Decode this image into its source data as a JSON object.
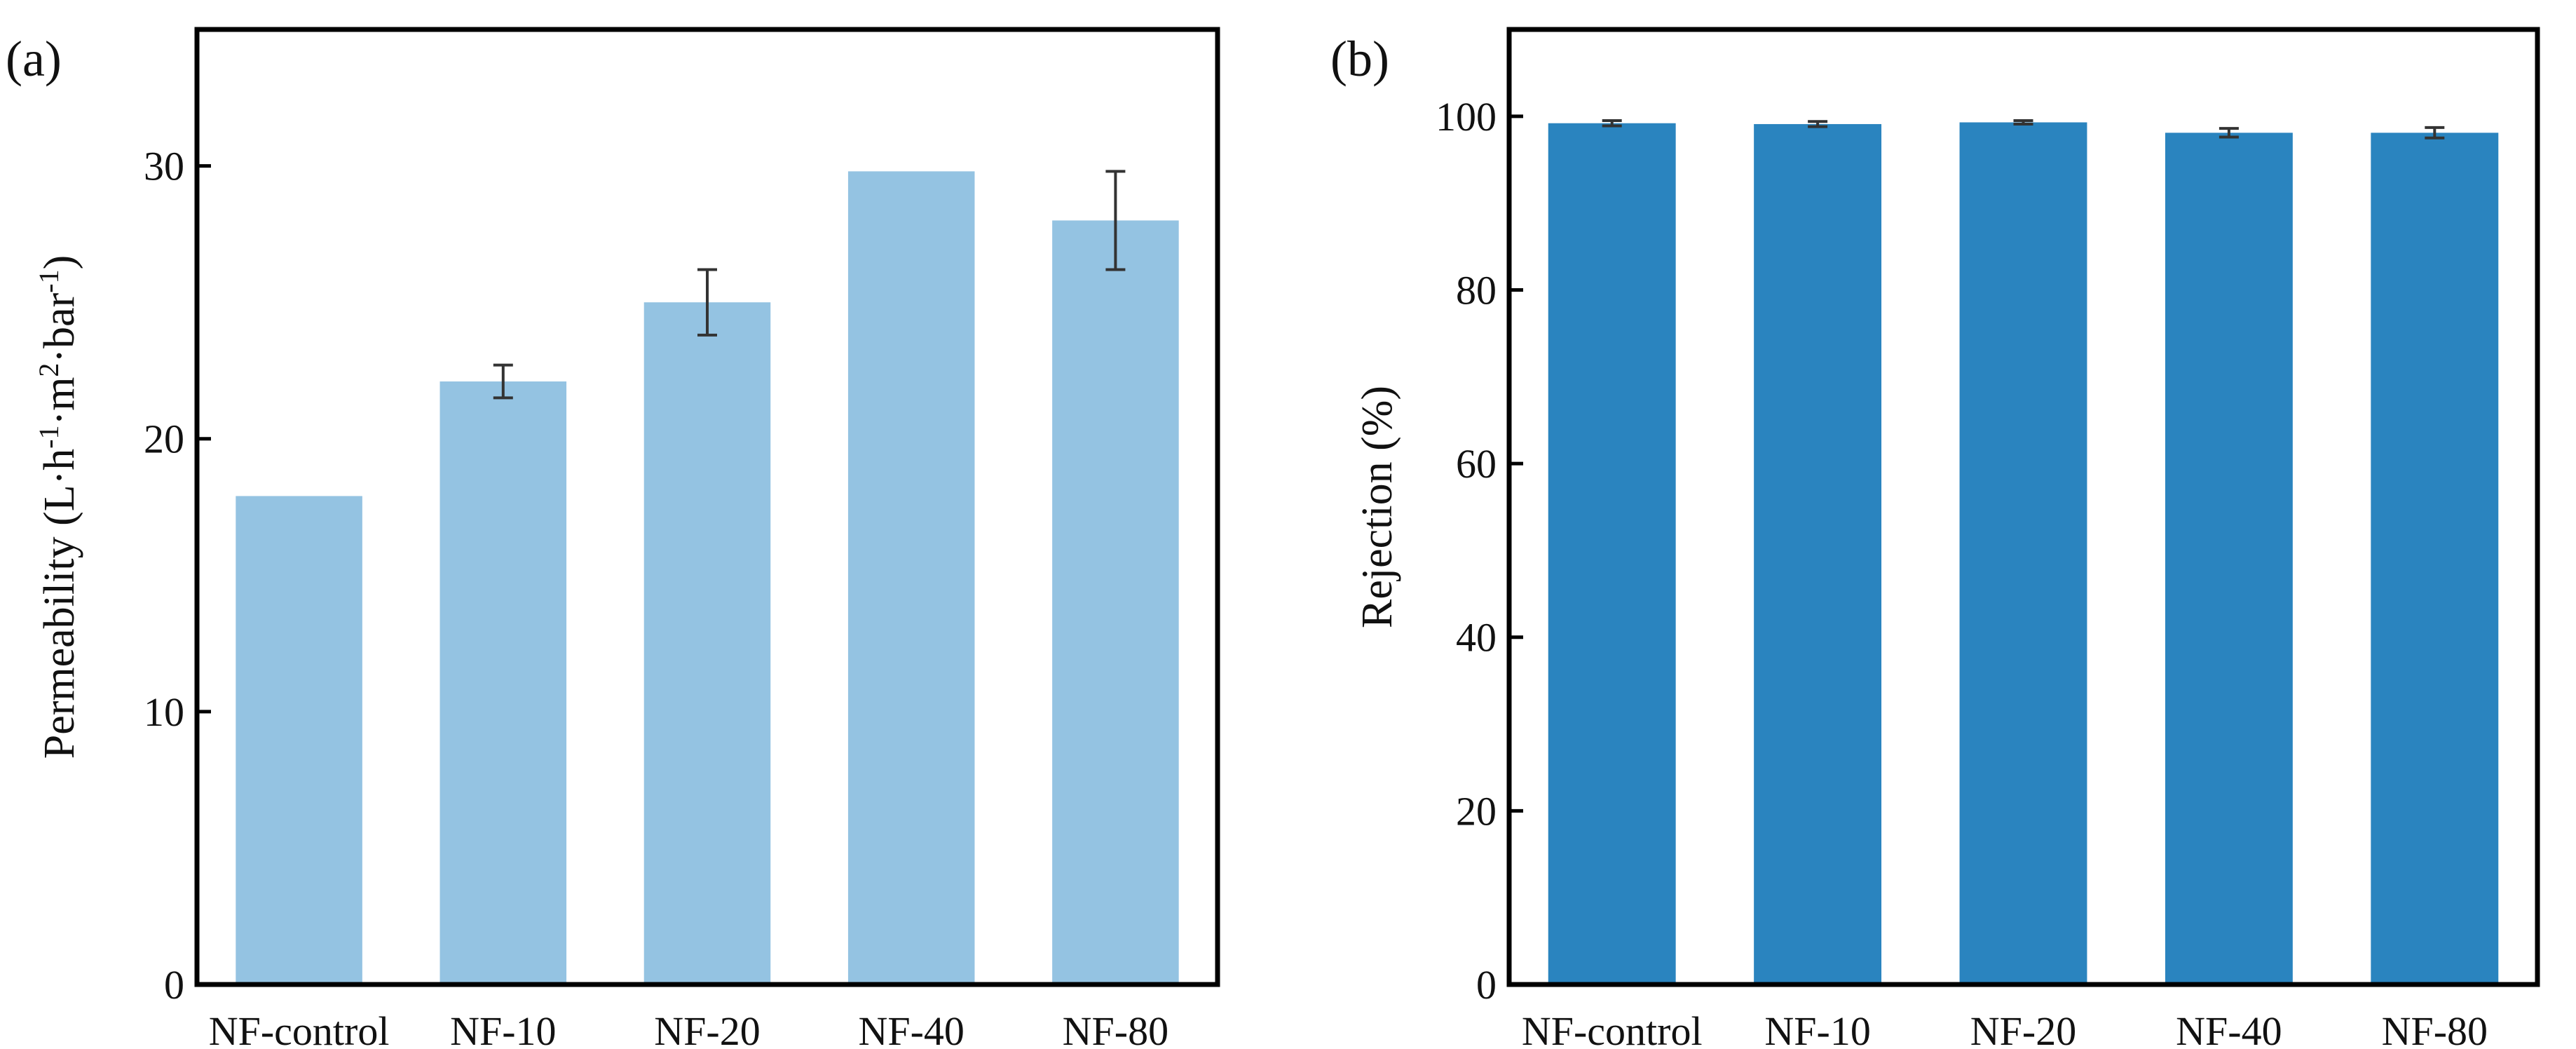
{
  "figure": {
    "panel_labels": [
      "(a)",
      "(b)"
    ]
  },
  "colors": {
    "panel_a_bar": "#94c3e2",
    "panel_b_bar": "#2a84bf",
    "axis": "#000000",
    "error_bar": "#333333"
  },
  "chart_data": [
    {
      "type": "bar",
      "panel": "(a)",
      "categories": [
        "NF-control",
        "NF-10",
        "NF-20",
        "NF-40",
        "NF-80"
      ],
      "values": [
        17.9,
        22.1,
        25.0,
        29.8,
        28.0
      ],
      "errors": [
        0,
        0.6,
        1.2,
        0,
        1.8
      ],
      "ylabel_parts": [
        "Permeability (L·h",
        "-1",
        "·m",
        "2",
        "·bar",
        "-1",
        ")"
      ],
      "ylim": [
        0,
        35
      ],
      "yticks": [
        0,
        10,
        20,
        30
      ],
      "grid": false,
      "legend": "none"
    },
    {
      "type": "bar",
      "panel": "(b)",
      "categories": [
        "NF-control",
        "NF-10",
        "NF-20",
        "NF-40",
        "NF-80"
      ],
      "values": [
        99.2,
        99.1,
        99.3,
        98.1,
        98.1
      ],
      "errors": [
        0.3,
        0.3,
        0.2,
        0.5,
        0.6
      ],
      "ylabel": "Rejection (%)",
      "ylim": [
        0,
        110
      ],
      "yticks": [
        0,
        20,
        40,
        60,
        80,
        100
      ],
      "grid": false,
      "legend": "none"
    }
  ]
}
